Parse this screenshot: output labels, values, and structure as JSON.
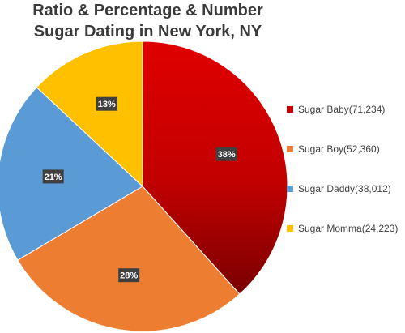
{
  "chart_data": {
    "type": "pie",
    "title": "Ratio & Percentage & Number",
    "subtitle": "Sugar Dating in New York, NY",
    "legend_position": "right",
    "slices": [
      {
        "label": "Sugar Baby(71,234)",
        "name": "Sugar Baby",
        "value": 71234,
        "percent_label": "38%",
        "color": "#c00000"
      },
      {
        "label": "Sugar Boy(52,360)",
        "name": "Sugar Boy",
        "value": 52360,
        "percent_label": "28%",
        "color": "#ed7d31"
      },
      {
        "label": "Sugar Daddy(38,012)",
        "name": "Sugar Daddy",
        "value": 38012,
        "percent_label": "21%",
        "color": "#5b9bd5"
      },
      {
        "label": "Sugar Momma(24,223)",
        "name": "Sugar Momma",
        "value": 24223,
        "percent_label": "13%",
        "color": "#ffc000"
      }
    ]
  }
}
